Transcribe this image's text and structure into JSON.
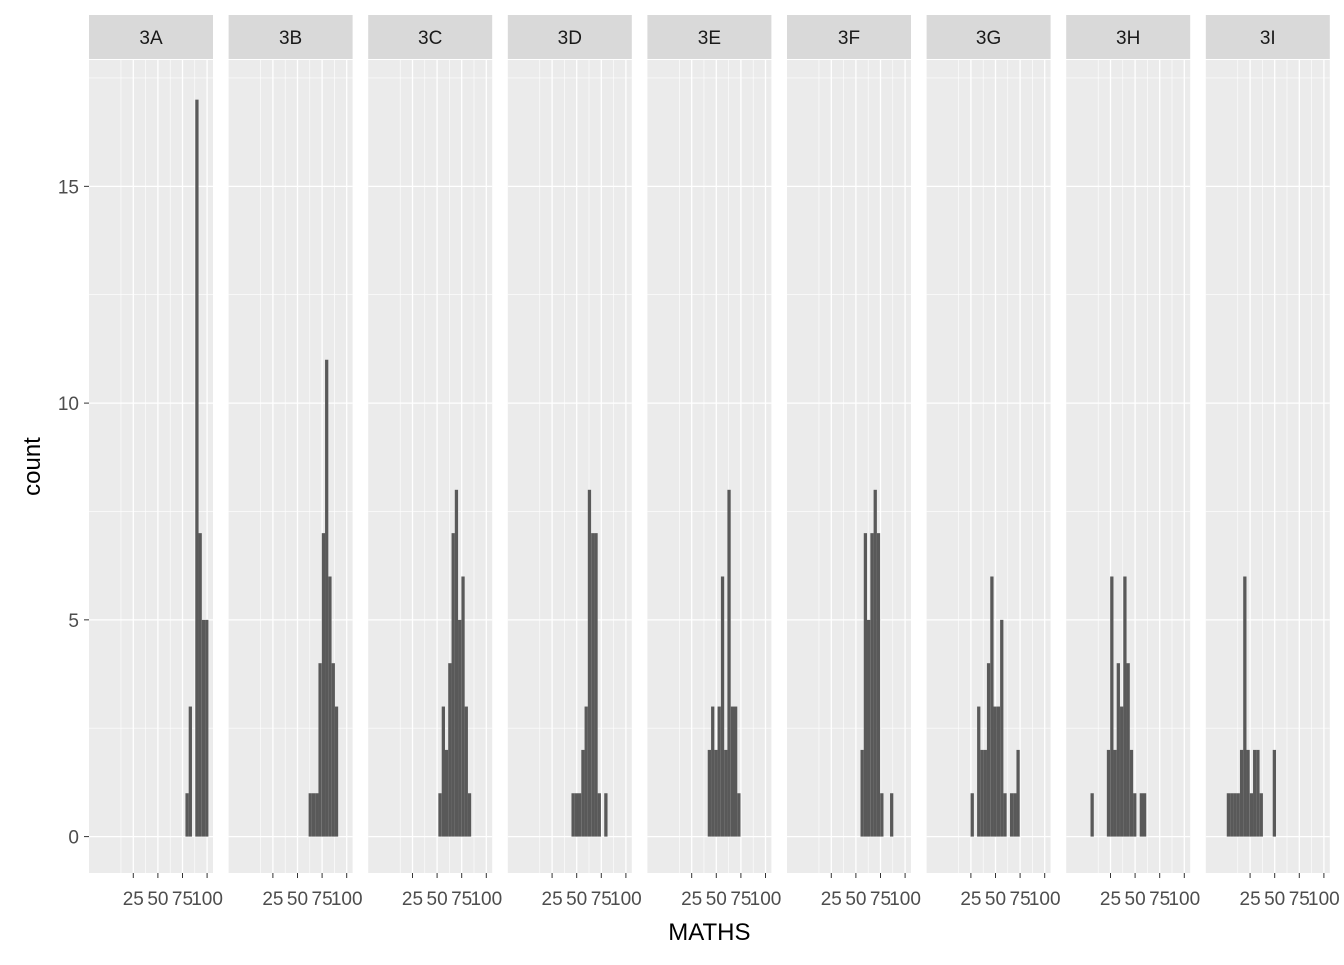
{
  "chart_data": {
    "type": "bar",
    "subtype": "faceted-histogram",
    "xlabel": "MATHS",
    "ylabel": "count",
    "x_ticks": [
      25,
      50,
      75,
      100
    ],
    "y_ticks": [
      0,
      5,
      10,
      15
    ],
    "xlim": [
      0,
      100
    ],
    "ylim": [
      0,
      18
    ],
    "bin_width": 3.33,
    "colors": {
      "panel_bg": "#ebebeb",
      "strip_bg": "#d9d9d9",
      "grid": "#ffffff",
      "bar": "#595959",
      "text": "#4d4d4d",
      "title": "#1a1a1a"
    },
    "facets": [
      {
        "label": "3A",
        "bins": [
          [
            78,
            1
          ],
          [
            81.3,
            3
          ],
          [
            88,
            17
          ],
          [
            91.3,
            7
          ],
          [
            94.7,
            5
          ],
          [
            98,
            5
          ]
        ]
      },
      {
        "label": "3B",
        "bins": [
          [
            61.3,
            1
          ],
          [
            64.7,
            1
          ],
          [
            68,
            1
          ],
          [
            71.3,
            4
          ],
          [
            74.7,
            7
          ],
          [
            78,
            11
          ],
          [
            81.3,
            6
          ],
          [
            84.7,
            4
          ],
          [
            88,
            3
          ]
        ]
      },
      {
        "label": "3C",
        "bins": [
          [
            51.3,
            1
          ],
          [
            54.7,
            3
          ],
          [
            58,
            2
          ],
          [
            61.3,
            4
          ],
          [
            64.7,
            7
          ],
          [
            68,
            8
          ],
          [
            71.3,
            5
          ],
          [
            74.7,
            6
          ],
          [
            78,
            3
          ],
          [
            81.3,
            1
          ]
        ]
      },
      {
        "label": "3D",
        "bins": [
          [
            44.7,
            1
          ],
          [
            48,
            1
          ],
          [
            51.3,
            1
          ],
          [
            54.7,
            2
          ],
          [
            58,
            3
          ],
          [
            61.3,
            8
          ],
          [
            64.7,
            7
          ],
          [
            68,
            7
          ],
          [
            71.3,
            1
          ],
          [
            78,
            1
          ]
        ]
      },
      {
        "label": "3E",
        "bins": [
          [
            41.3,
            2
          ],
          [
            44.7,
            3
          ],
          [
            48,
            2
          ],
          [
            51.3,
            3
          ],
          [
            54.7,
            6
          ],
          [
            58,
            2
          ],
          [
            61.3,
            8
          ],
          [
            64.7,
            3
          ],
          [
            68,
            3
          ],
          [
            71.3,
            1
          ]
        ]
      },
      {
        "label": "3F",
        "bins": [
          [
            54.7,
            2
          ],
          [
            58,
            7
          ],
          [
            61.3,
            5
          ],
          [
            64.7,
            7
          ],
          [
            68,
            8
          ],
          [
            71.3,
            7
          ],
          [
            74.7,
            1
          ],
          [
            84.7,
            1
          ]
        ]
      },
      {
        "label": "3G",
        "bins": [
          [
            24.7,
            1
          ],
          [
            31.3,
            3
          ],
          [
            34.7,
            2
          ],
          [
            38,
            2
          ],
          [
            41.3,
            4
          ],
          [
            44.7,
            6
          ],
          [
            48,
            3
          ],
          [
            51.3,
            3
          ],
          [
            54.7,
            5
          ],
          [
            58,
            1
          ],
          [
            61.3,
            0
          ],
          [
            64.7,
            1
          ],
          [
            68,
            1
          ],
          [
            71.3,
            2
          ]
        ]
      },
      {
        "label": "3H",
        "bins": [
          [
            4.7,
            1
          ],
          [
            21.3,
            2
          ],
          [
            24.7,
            6
          ],
          [
            28,
            2
          ],
          [
            31.3,
            4
          ],
          [
            34.7,
            3
          ],
          [
            38,
            6
          ],
          [
            41.3,
            4
          ],
          [
            44.7,
            2
          ],
          [
            48,
            1
          ],
          [
            51.3,
            0
          ],
          [
            54.7,
            1
          ],
          [
            58,
            1
          ]
        ]
      },
      {
        "label": "3I",
        "bins": [
          [
            1.3,
            1
          ],
          [
            4.7,
            1
          ],
          [
            8,
            1
          ],
          [
            11.3,
            1
          ],
          [
            14.7,
            2
          ],
          [
            18,
            6
          ],
          [
            21.3,
            2
          ],
          [
            24.7,
            1
          ],
          [
            28,
            2
          ],
          [
            31.3,
            2
          ],
          [
            34.7,
            1
          ],
          [
            48,
            2
          ]
        ]
      }
    ]
  }
}
